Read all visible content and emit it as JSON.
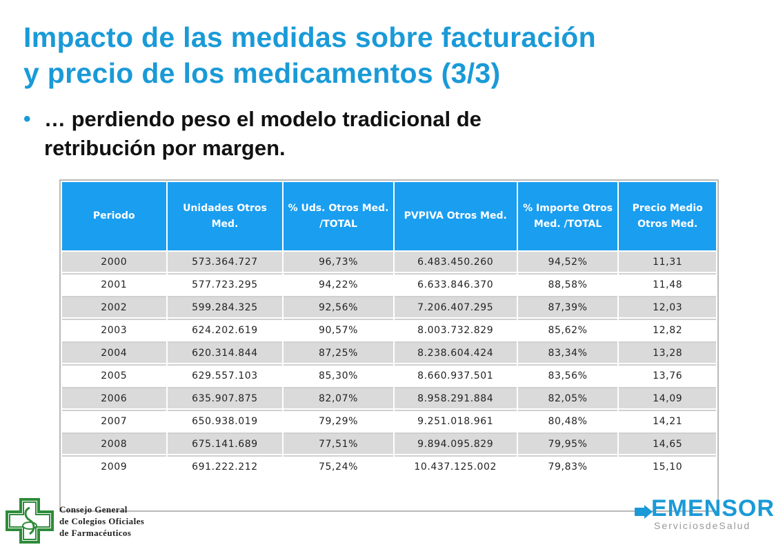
{
  "slide": {
    "title_line1": "Impacto de las medidas sobre facturación",
    "title_line2": "y precio de los medicamentos (3/3)",
    "bullet_line1": "… perdiendo peso el modelo tradicional de",
    "bullet_line2": "retribución por margen."
  },
  "table": {
    "headers": [
      "Periodo",
      "Unidades Otros Med.",
      "% Uds. Otros Med. /TOTAL",
      "PVPIVA Otros Med.",
      "% Importe Otros Med. /TOTAL",
      "Precio Medio Otros Med."
    ],
    "rows": [
      [
        "2000",
        "573.364.727",
        "96,73%",
        "6.483.450.260",
        "94,52%",
        "11,31"
      ],
      [
        "2001",
        "577.723.295",
        "94,22%",
        "6.633.846.370",
        "88,58%",
        "11,48"
      ],
      [
        "2002",
        "599.284.325",
        "92,56%",
        "7.206.407.295",
        "87,39%",
        "12,03"
      ],
      [
        "2003",
        "624.202.619",
        "90,57%",
        "8.003.732.829",
        "85,62%",
        "12,82"
      ],
      [
        "2004",
        "620.314.844",
        "87,25%",
        "8.238.604.424",
        "83,34%",
        "13,28"
      ],
      [
        "2005",
        "629.557.103",
        "85,30%",
        "8.660.937.501",
        "83,56%",
        "13,76"
      ],
      [
        "2006",
        "635.907.875",
        "82,07%",
        "8.958.291.884",
        "82,05%",
        "14,09"
      ],
      [
        "2007",
        "650.938.019",
        "79,29%",
        "9.251.018.961",
        "80,48%",
        "14,21"
      ],
      [
        "2008",
        "675.141.689",
        "77,51%",
        "9.894.095.829",
        "79,95%",
        "14,65"
      ],
      [
        "2009",
        "691.222.212",
        "75,24%",
        "10.437.125.002",
        "79,83%",
        "15,10"
      ]
    ]
  },
  "logos": {
    "left_line1": "Consejo General",
    "left_line2": "de Colegios Oficiales",
    "left_line3": "de Farmacéuticos",
    "right_word": "EMENSOR",
    "right_sub": "ServiciosdeSalud"
  },
  "colors": {
    "accent": "#1a9ad7",
    "header_fill": "#1a9ef0",
    "row_alt": "#dadada"
  }
}
